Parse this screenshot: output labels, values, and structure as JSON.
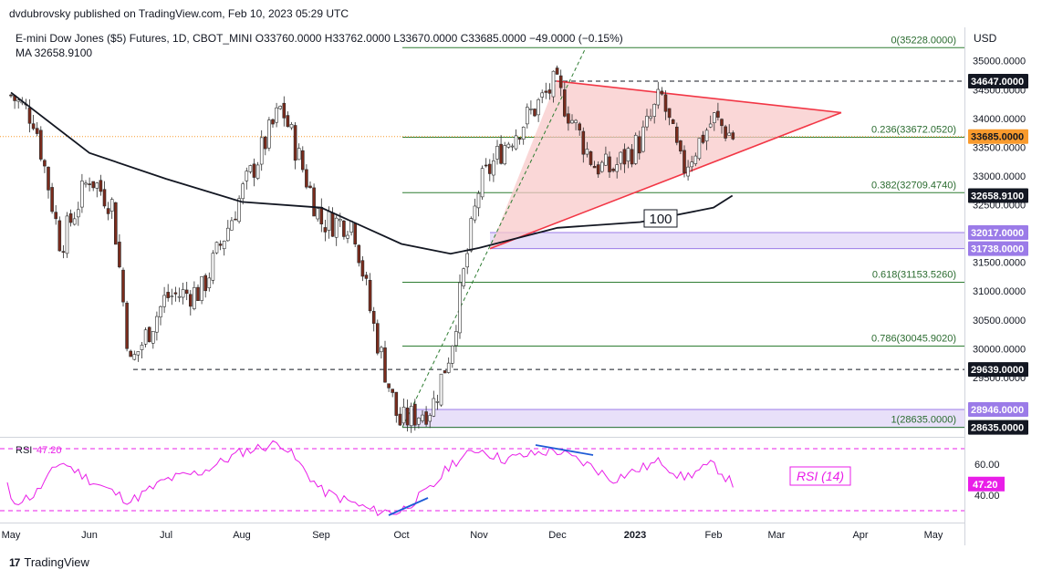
{
  "publisher": "dvdubrovsky published on TradingView.com, Feb 10, 2023 05:29 UTC",
  "header": {
    "symbol_line": "E-mini Dow Jones ($5) Futures, 1D, CBOT_MINI  O33760.0000  H33762.0000  L33670.0000  C33685.0000  −49.0000 (−0.15%)",
    "ma_line": "MA  32658.9100"
  },
  "currency": "USD",
  "footer": {
    "logo": "17",
    "brand": "TradingView"
  },
  "colors": {
    "price": "#f89a2d",
    "ma": "#131722",
    "fib": "#2e7d32",
    "triangle_fill": "#f8c9c9",
    "triangle_edge": "#f23645",
    "zone": "#d9ccf5",
    "zone_label": "#9b7be8",
    "rsi": "#e91ee8",
    "trendline": "#1e5bd6",
    "candle_up": "#ffffff",
    "candle_down": "#7a2b1c"
  },
  "chart_data": [
    {
      "type": "candlestick",
      "title": "E-mini Dow Jones ($5) Futures, 1D, CBOT_MINI",
      "ylim": [
        28450,
        35650
      ],
      "grid": false,
      "x_tick_labels": [
        "May",
        "Jun",
        "Jul",
        "Aug",
        "Sep",
        "Oct",
        "Nov",
        "Dec",
        "2023",
        "Feb",
        "Mar",
        "Apr",
        "May"
      ],
      "y_tick_labels": [
        "35000.0000",
        "34500.0000",
        "34000.0000",
        "33500.0000",
        "33000.0000",
        "32500.0000",
        "32000.0000",
        "31500.0000",
        "31000.0000",
        "30500.0000",
        "30000.0000",
        "29500.0000",
        "29000.0000"
      ],
      "price_path": [
        [
          "May",
          34400
        ],
        [
          "May 10",
          34000
        ],
        [
          "May 20",
          31800
        ],
        [
          "Jun",
          33000
        ],
        [
          "Jun 10",
          32500
        ],
        [
          "Jun 17",
          29700
        ],
        [
          "Jul",
          30900
        ],
        [
          "Jul 15",
          31000
        ],
        [
          "Aug",
          32700
        ],
        [
          "Aug 16",
          34200
        ],
        [
          "Sep",
          32200
        ],
        [
          "Sep 13",
          32200
        ],
        [
          "Sep 20",
          30500
        ],
        [
          "Sep 30",
          28700
        ],
        [
          "Oct 13",
          29000
        ],
        [
          "Oct 20",
          30000
        ],
        [
          "Nov",
          32800
        ],
        [
          "Nov 10",
          33500
        ],
        [
          "Nov 30",
          34600
        ],
        [
          "Dec 15",
          33200
        ],
        [
          "Dec 22",
          33100
        ],
        [
          "Jan 3",
          33600
        ],
        [
          "Jan 11",
          34400
        ],
        [
          "Jan 19",
          33100
        ],
        [
          "Feb",
          34000
        ],
        [
          "Feb 10",
          33685
        ]
      ],
      "ma_label": "100",
      "ma_path": [
        [
          "May",
          34450
        ],
        [
          "Jun",
          33400
        ],
        [
          "Jul",
          32950
        ],
        [
          "Aug",
          32550
        ],
        [
          "Sep",
          32450
        ],
        [
          "Oct",
          31820
        ],
        [
          "Oct 20",
          31650
        ],
        [
          "Nov",
          31750
        ],
        [
          "Dec",
          32100
        ],
        [
          "Jan 3",
          32200
        ],
        [
          "Feb",
          32450
        ],
        [
          "Feb 10",
          32658.91
        ]
      ],
      "fib_levels": [
        {
          "label": "0(35228.0000)",
          "value": 35228.0
        },
        {
          "label": "0.236(33672.0520)",
          "value": 33672.052
        },
        {
          "label": "0.382(32709.4740)",
          "value": 32709.474
        },
        {
          "label": "0.618(31153.5260)",
          "value": 31153.526
        },
        {
          "label": "0.786(30045.9020)",
          "value": 30045.902
        },
        {
          "label": "1(28635.0000)",
          "value": 28635.0
        }
      ],
      "dashed_levels": [
        34647.0,
        29639.0
      ],
      "zones": [
        [
          31738.0,
          32017.0
        ],
        [
          28635.0,
          28946.0
        ]
      ],
      "triangle": {
        "apex_top": [
          34647,
          33530
        ],
        "apex_bottom": [
          31738,
          33530
        ],
        "tip": 34100
      },
      "price_labels": [
        {
          "text": "34647.0000",
          "value": 34647.0,
          "style": "dark"
        },
        {
          "text": "33685.0000",
          "value": 33685.0,
          "style": "orange"
        },
        {
          "text": "32658.9100",
          "value": 32658.91,
          "style": "dark"
        },
        {
          "text": "32017.0000",
          "value": 32017.0,
          "style": "purple"
        },
        {
          "text": "31738.0000",
          "value": 31738.0,
          "style": "purple"
        },
        {
          "text": "29639.0000",
          "value": 29639.0,
          "style": "dark"
        },
        {
          "text": "28946.0000",
          "value": 28946.0,
          "style": "purple"
        },
        {
          "text": "28635.0000",
          "value": 28635.0,
          "style": "dark"
        }
      ]
    },
    {
      "type": "line",
      "title": "RSI",
      "series": [
        {
          "name": "RSI",
          "last_value": "47.20"
        }
      ],
      "legend_value": "47.20",
      "annotation": "RSI (14)",
      "y_tick_labels": [
        "60.00",
        "40.00"
      ],
      "ylim": [
        25,
        80
      ],
      "bands": [
        70,
        30
      ],
      "rsi_path": [
        [
          "May",
          35
        ],
        [
          "May 10",
          40
        ],
        [
          "May 20",
          62
        ],
        [
          "Jun",
          50
        ],
        [
          "Jun 17",
          36
        ],
        [
          "Jul",
          50
        ],
        [
          "Jul 15",
          55
        ],
        [
          "Aug",
          68
        ],
        [
          "Aug 16",
          74
        ],
        [
          "Sep",
          43
        ],
        [
          "Sep 20",
          30
        ],
        [
          "Sep 30",
          29
        ],
        [
          "Oct 13",
          45
        ],
        [
          "Oct 20",
          60
        ],
        [
          "Nov",
          70
        ],
        [
          "Nov 10",
          63
        ],
        [
          "Nov 30",
          69
        ],
        [
          "Dec 15",
          58
        ],
        [
          "Dec 22",
          50
        ],
        [
          "Jan 3",
          57
        ],
        [
          "Jan 11",
          62
        ],
        [
          "Jan 19",
          51
        ],
        [
          "Feb",
          60
        ],
        [
          "Feb 10",
          47.2
        ]
      ]
    }
  ]
}
